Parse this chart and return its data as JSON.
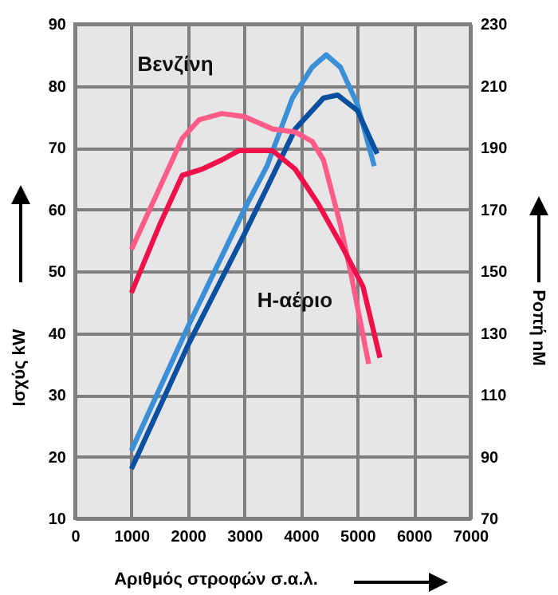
{
  "chart_data": {
    "type": "line",
    "xlabel": "Αριθμός στροφών σ.α.λ.",
    "ylabel": "Ισχύς kW",
    "y2label": "Ροπή nM",
    "xlim": [
      0,
      7000
    ],
    "xticks": [
      0,
      1000,
      2000,
      3000,
      4000,
      5000,
      6000,
      7000
    ],
    "ylim": [
      10,
      90
    ],
    "yticks": [
      10,
      20,
      30,
      40,
      50,
      60,
      70,
      80,
      90
    ],
    "y2lim": [
      70,
      230
    ],
    "y2ticks": [
      70,
      90,
      110,
      130,
      150,
      170,
      190,
      210,
      230
    ],
    "grid": true,
    "line_style": "solid",
    "marker": "none",
    "series": [
      {
        "color": "#3a8fd6",
        "x": [
          1000,
          2000,
          3000,
          3400,
          3850,
          4200,
          4450,
          4700,
          5000,
          5300
        ],
        "values": [
          21,
          41,
          60,
          67,
          78,
          83,
          85,
          83,
          77,
          67
        ]
      },
      {
        "color": "#0b4fa0",
        "x": [
          1000,
          2000,
          3000,
          3400,
          3900,
          4400,
          4650,
          5000,
          5350
        ],
        "values": [
          18,
          38,
          56,
          63.5,
          73,
          78,
          78.5,
          76,
          69
        ]
      },
      {
        "axis": "y2",
        "color": "#ff5c8a",
        "x": [
          1000,
          1500,
          1900,
          2200,
          2600,
          3000,
          3500,
          3900,
          4200,
          4400,
          4700,
          4900,
          5200
        ],
        "values": [
          157,
          177,
          193,
          199,
          201,
          200,
          196,
          195,
          192,
          186,
          165,
          148,
          120
        ]
      },
      {
        "axis": "y2",
        "color": "#f0104a",
        "x": [
          1000,
          1500,
          1900,
          2250,
          2600,
          2900,
          3500,
          3900,
          4300,
          4700,
          5100,
          5400
        ],
        "values": [
          143,
          165,
          181,
          183,
          186,
          189,
          189,
          183,
          172,
          159,
          145,
          122
        ]
      }
    ],
    "annotations": [
      "Βενζίνη",
      "H-αέριο"
    ]
  }
}
